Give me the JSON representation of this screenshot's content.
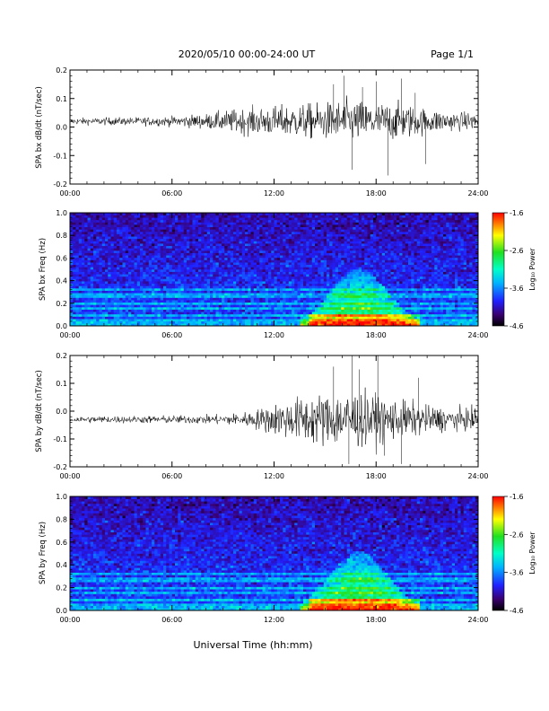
{
  "header": {
    "title": "2020/05/10  00:00-24:00 UT",
    "page": "Page 1/1"
  },
  "footer": {
    "xlabel": "Universal Time (hh:mm)"
  },
  "chart_data": [
    {
      "type": "line",
      "ylabel": "SPA bx dB/dt (nT/sec)",
      "x_ticks": [
        "00:00",
        "06:00",
        "12:00",
        "18:00",
        "24:00"
      ],
      "xlim_hours": [
        0,
        24
      ],
      "ylim": [
        -0.2,
        0.2
      ],
      "y_ticks": [
        "0.2",
        "0.1",
        "0.0",
        "-0.1",
        "-0.2"
      ],
      "baseline": 0.02,
      "envelope": {
        "hours": [
          0,
          2,
          4,
          6,
          8,
          9,
          10,
          11,
          12,
          13,
          14,
          15,
          16,
          16.5,
          17,
          18,
          19,
          20,
          21,
          22,
          23,
          24
        ],
        "amplitude": [
          0.008,
          0.009,
          0.01,
          0.012,
          0.018,
          0.025,
          0.03,
          0.034,
          0.036,
          0.04,
          0.042,
          0.045,
          0.05,
          0.055,
          0.05,
          0.045,
          0.045,
          0.04,
          0.03,
          0.025,
          0.022,
          0.02
        ]
      },
      "spikes": [
        {
          "hour": 15.5,
          "value": 0.15
        },
        {
          "hour": 16.1,
          "value": 0.18
        },
        {
          "hour": 16.6,
          "value": -0.15
        },
        {
          "hour": 17.2,
          "value": 0.14
        },
        {
          "hour": 18.0,
          "value": 0.16
        },
        {
          "hour": 18.7,
          "value": -0.17
        },
        {
          "hour": 19.5,
          "value": 0.17
        },
        {
          "hour": 20.3,
          "value": 0.12
        },
        {
          "hour": 20.9,
          "value": -0.13
        }
      ]
    },
    {
      "type": "heatmap",
      "ylabel": "SPA bx Freq (Hz)",
      "x_ticks": [
        "00:00",
        "06:00",
        "12:00",
        "18:00",
        "24:00"
      ],
      "y_ticks": [
        "1.0",
        "0.8",
        "0.6",
        "0.4",
        "0.2",
        "0.0"
      ],
      "ylim": [
        0,
        1.0
      ],
      "colorbar": {
        "label": "Log₁₀ Power",
        "ticks": [
          "-1.6",
          "-2.6",
          "-3.6",
          "-4.6"
        ],
        "range": [
          -4.6,
          -1.6
        ]
      },
      "bands_hz": [
        0.1,
        0.15,
        0.2,
        0.27,
        0.33
      ],
      "enhancement": {
        "start_hour": 13.5,
        "peak_hour": 17.0,
        "end_hour": 20.5,
        "max_freq_hz": 0.5
      }
    },
    {
      "type": "line",
      "ylabel": "SPA by dB/dt (nT/sec)",
      "x_ticks": [
        "00:00",
        "06:00",
        "12:00",
        "18:00",
        "24:00"
      ],
      "xlim_hours": [
        0,
        24
      ],
      "ylim": [
        -0.2,
        0.2
      ],
      "y_ticks": [
        "0.2",
        "0.1",
        "0.0",
        "-0.1",
        "-0.2"
      ],
      "baseline": -0.03,
      "envelope": {
        "hours": [
          0,
          2,
          4,
          6,
          8,
          9,
          10,
          11,
          12,
          13,
          14,
          15,
          16,
          16.5,
          17,
          18,
          19,
          20,
          21,
          22,
          23,
          24
        ],
        "amplitude": [
          0.008,
          0.009,
          0.009,
          0.01,
          0.011,
          0.013,
          0.016,
          0.025,
          0.04,
          0.05,
          0.06,
          0.065,
          0.07,
          0.075,
          0.07,
          0.06,
          0.05,
          0.045,
          0.035,
          0.03,
          0.028,
          0.025
        ]
      },
      "spikes": [
        {
          "hour": 15.5,
          "value": 0.16
        },
        {
          "hour": 16.4,
          "value": -0.19
        },
        {
          "hour": 16.6,
          "value": 0.2
        },
        {
          "hour": 17.0,
          "value": 0.15
        },
        {
          "hour": 18.1,
          "value": 0.2
        },
        {
          "hour": 18.5,
          "value": -0.16
        },
        {
          "hour": 19.5,
          "value": -0.19
        },
        {
          "hour": 20.5,
          "value": 0.12
        }
      ]
    },
    {
      "type": "heatmap",
      "ylabel": "SPA by Freq (Hz)",
      "x_ticks": [
        "00:00",
        "06:00",
        "12:00",
        "18:00",
        "24:00"
      ],
      "y_ticks": [
        "1.0",
        "0.8",
        "0.6",
        "0.4",
        "0.2",
        "0.0"
      ],
      "ylim": [
        0,
        1.0
      ],
      "colorbar": {
        "label": "Log₁₀ Power",
        "ticks": [
          "-1.6",
          "-2.6",
          "-3.6",
          "-4.6"
        ],
        "range": [
          -4.6,
          -1.6
        ]
      },
      "bands_hz": [
        0.1,
        0.15,
        0.2,
        0.27,
        0.33
      ],
      "enhancement": {
        "start_hour": 13.5,
        "peak_hour": 17.0,
        "end_hour": 20.5,
        "max_freq_hz": 0.52
      }
    }
  ]
}
